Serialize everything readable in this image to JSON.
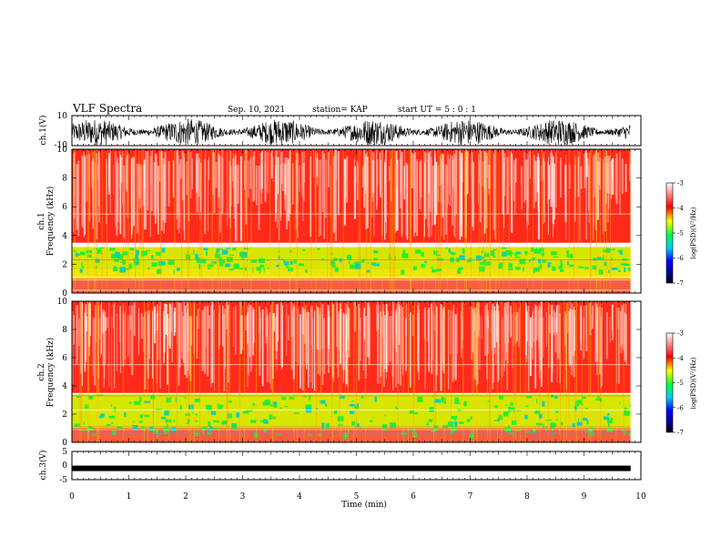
{
  "header": {
    "title": "VLF Spectra",
    "date": "Sep. 10, 2021",
    "station": "station= KAP",
    "start": "start  UT =   5 : 0  : 1"
  },
  "chart_data": [
    {
      "type": "line",
      "panel": "ch1-waveform",
      "ylabel": "ch.1(V)",
      "ylim": [
        -10,
        10
      ],
      "yticks": [
        "10",
        "-10"
      ],
      "xlim": [
        0,
        10
      ],
      "data_end_min": 9.82,
      "signal": "noisy waveform, mostly between about -10 and 10 V"
    },
    {
      "type": "heatmap",
      "panel": "ch1-spectrogram",
      "ylabel": "ch.1\nFrequency (kHz)",
      "ylim": [
        0,
        10
      ],
      "yticks": [
        "0",
        "2",
        "4",
        "6",
        "8",
        "10"
      ],
      "xlim": [
        0,
        10
      ],
      "data_end_min": 9.82,
      "colorbar": {
        "label": "log(PSD)(V²/Hz)",
        "range": [
          -7,
          -3
        ],
        "ticks": [
          "-3",
          "-4",
          "-5",
          "-6",
          "-7"
        ]
      }
    },
    {
      "type": "heatmap",
      "panel": "ch2-spectrogram",
      "ylabel": "ch.2\nFrequency (kHz)",
      "ylim": [
        0,
        10
      ],
      "yticks": [
        "0",
        "2",
        "4",
        "6",
        "8",
        "10"
      ],
      "xlim": [
        0,
        10
      ],
      "data_end_min": 9.82,
      "colorbar": {
        "label": "log(PSD)(V²/Hz)",
        "range": [
          -7,
          -3
        ],
        "ticks": [
          "-3",
          "-4",
          "-5",
          "-6",
          "-7"
        ]
      }
    },
    {
      "type": "line",
      "panel": "ch3-waveform",
      "ylabel": "ch.3(V)",
      "ylim": [
        -5,
        5
      ],
      "yticks": [
        "5",
        "0",
        "-5"
      ],
      "xlim": [
        0,
        10
      ],
      "data_end_min": 9.82,
      "level_approx": -1.0
    }
  ],
  "xaxis": {
    "label": "Time (min)",
    "ticks": [
      "0",
      "1",
      "2",
      "3",
      "4",
      "5",
      "6",
      "7",
      "8",
      "9",
      "10"
    ]
  }
}
